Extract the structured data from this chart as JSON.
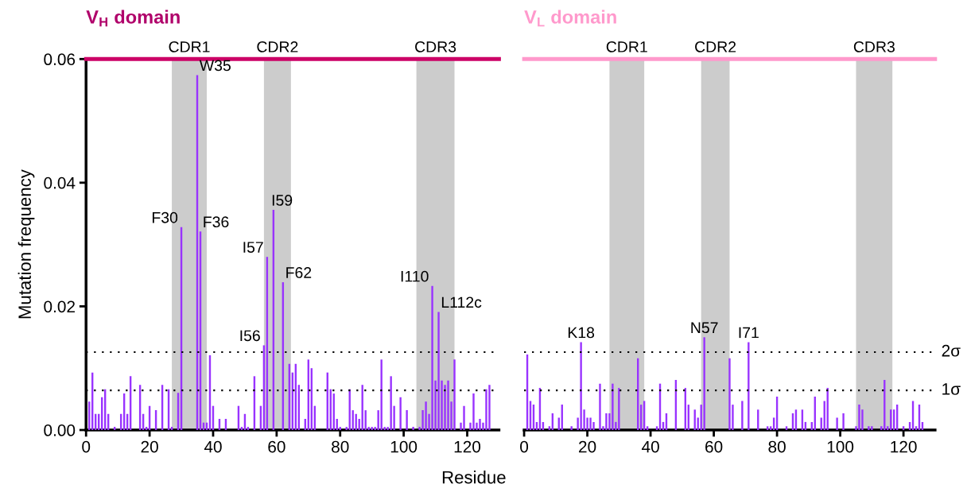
{
  "chart_data": [
    {
      "type": "bar",
      "title": "V$_{H}$ domain",
      "xlabel": "Residue",
      "ylabel": "Mutation frequency",
      "x": [
        1,
        2,
        3,
        4,
        5,
        6,
        7,
        9,
        11,
        12,
        13,
        14,
        17,
        18,
        19,
        20,
        22,
        24,
        26,
        27,
        29,
        30,
        35,
        36,
        37,
        38,
        39,
        40,
        42,
        44,
        48,
        49,
        50,
        51,
        53,
        55,
        56,
        57,
        59,
        62,
        64,
        65,
        66,
        67,
        69,
        70,
        71,
        72,
        76,
        77,
        78,
        79,
        80,
        82,
        83,
        84,
        85,
        86,
        87,
        88,
        89,
        90,
        91,
        92,
        93,
        94,
        95,
        96,
        97,
        99,
        101,
        103,
        105,
        106,
        107,
        108,
        109,
        110,
        111,
        112,
        113,
        114,
        115,
        116,
        118,
        119,
        121,
        122,
        123,
        124,
        125,
        126,
        127
      ],
      "values": [
        0.0046,
        0.0093,
        0.0026,
        0.0026,
        0.0053,
        0.0066,
        0.0026,
        0.0005,
        0.0026,
        0.0059,
        0.0026,
        0.0087,
        0.0073,
        0.0026,
        0.0005,
        0.0039,
        0.0032,
        0.0073,
        0.0066,
        0.0005,
        0.006,
        0.0328,
        0.0574,
        0.0321,
        0.0012,
        0.0012,
        0.0121,
        0.0039,
        0.0018,
        0.0018,
        0.0039,
        0.0005,
        0.0026,
        0.0005,
        0.0087,
        0.0039,
        0.0137,
        0.028,
        0.0356,
        0.0239,
        0.0107,
        0.0093,
        0.0107,
        0.0073,
        0.0018,
        0.0114,
        0.01,
        0.0039,
        0.0093,
        0.0066,
        0.0059,
        0.0018,
        0.0005,
        0.0005,
        0.0066,
        0.0032,
        0.0026,
        0.0018,
        0.0073,
        0.0032,
        0.0005,
        0.0005,
        0.0005,
        0.0032,
        0.0114,
        0.0005,
        0.0005,
        0.0087,
        0.0039,
        0.0053,
        0.0032,
        0.0005,
        0.0005,
        0.0032,
        0.0046,
        0.0026,
        0.0233,
        0.008,
        0.0191,
        0.008,
        0.0073,
        0.008,
        0.0046,
        0.0114,
        0.0012,
        0.0039,
        0.0012,
        0.0059,
        0.0012,
        0.0018,
        0.0012,
        0.0066,
        0.0073
      ],
      "color": "#9933ff",
      "xlim": [
        0,
        130
      ],
      "xticks": [
        0,
        20,
        40,
        60,
        80,
        100,
        120
      ],
      "ylim": [
        0,
        0.06
      ],
      "yticks": [
        {
          "value": 0,
          "label": "0.00"
        },
        {
          "value": 0.02,
          "label": "0.02"
        },
        {
          "value": 0.04,
          "label": "0.04"
        },
        {
          "value": 0.06,
          "label": "0.06"
        }
      ],
      "bands": [
        {
          "axis": "x",
          "from": 27,
          "to": 38,
          "label": "CDR1",
          "color": "#cccccc"
        },
        {
          "axis": "x",
          "from": 56,
          "to": 64.5,
          "label": "CDR2",
          "color": "#cccccc"
        },
        {
          "axis": "x",
          "from": 104,
          "to": 116,
          "label": "CDR3",
          "color": "#cccccc"
        }
      ],
      "ref_lines": [
        {
          "axis": "y",
          "value": 0.0126,
          "color": "#000000",
          "line_style": "dotted"
        },
        {
          "axis": "y",
          "value": 0.0064,
          "color": "#000000",
          "line_style": "dotted"
        },
        {
          "axis": "y",
          "value": 0.06,
          "color": "#cc0066",
          "line_style": "solid"
        }
      ],
      "annotations": [
        {
          "text": "F30",
          "x": 30,
          "y": 0.0328
        },
        {
          "text": "W35",
          "x": 35,
          "y": 0.0574
        },
        {
          "text": "F36",
          "x": 36,
          "y": 0.0321
        },
        {
          "text": "I57",
          "x": 57,
          "y": 0.028
        },
        {
          "text": "I59",
          "x": 59,
          "y": 0.0356
        },
        {
          "text": "F62",
          "x": 62,
          "y": 0.0239
        },
        {
          "text": "I56",
          "x": 56,
          "y": 0.0137
        },
        {
          "text": "I110",
          "x": 109,
          "y": 0.0233
        },
        {
          "text": "L112c",
          "x": 111,
          "y": 0.0191
        }
      ],
      "grid": false,
      "legend": false
    },
    {
      "type": "bar",
      "title": "V$_{L}$ domain",
      "x": [
        1,
        2,
        3,
        4,
        5,
        6,
        8,
        9,
        11,
        12,
        15,
        17,
        18,
        19,
        20,
        21,
        22,
        24,
        25,
        26,
        27,
        28,
        29,
        30,
        36,
        37,
        38,
        39,
        42,
        43,
        44,
        45,
        48,
        51,
        52,
        54,
        55,
        56,
        57,
        65,
        66,
        69,
        71,
        74,
        77,
        78,
        79,
        80,
        83,
        85,
        86,
        88,
        89,
        91,
        92,
        94,
        95,
        96,
        99,
        101,
        105,
        106,
        107,
        109,
        110,
        113,
        114,
        115,
        116,
        117,
        118,
        120,
        122,
        123,
        124,
        125,
        126
      ],
      "values": [
        0.0122,
        0.0047,
        0.0041,
        0.0013,
        0.0068,
        0.0013,
        0.0006,
        0.0027,
        0.002,
        0.0041,
        0.0006,
        0.002,
        0.0142,
        0.0033,
        0.002,
        0.002,
        0.0013,
        0.0075,
        0.0006,
        0.0027,
        0.0027,
        0.0075,
        0.0013,
        0.0068,
        0.0116,
        0.0041,
        0.0047,
        0.0006,
        0.0006,
        0.0075,
        0.0013,
        0.0027,
        0.0081,
        0.0068,
        0.0041,
        0.0033,
        0.002,
        0.0041,
        0.015,
        0.0116,
        0.0041,
        0.0047,
        0.0142,
        0.0033,
        0.0006,
        0.0006,
        0.002,
        0.0054,
        0.0006,
        0.0027,
        0.0033,
        0.0033,
        0.0013,
        0.0013,
        0.0054,
        0.002,
        0.0047,
        0.0068,
        0.002,
        0.0027,
        0.0006,
        0.0041,
        0.0033,
        0.0006,
        0.0006,
        0.0006,
        0.0081,
        0.0006,
        0.0033,
        0.0033,
        0.0041,
        0.0006,
        0.0013,
        0.0047,
        0.0006,
        0.0041,
        0.0013
      ],
      "color": "#9933ff",
      "xlim": [
        0,
        130
      ],
      "xticks": [
        0,
        20,
        40,
        60,
        80,
        100,
        120
      ],
      "ylim": [
        0,
        0.06
      ],
      "tick_labels": "x",
      "bands": [
        {
          "axis": "x",
          "from": 27,
          "to": 38,
          "label": "CDR1",
          "color": "#cccccc"
        },
        {
          "axis": "x",
          "from": 56,
          "to": 65,
          "label": "CDR2",
          "color": "#cccccc"
        },
        {
          "axis": "x",
          "from": 105,
          "to": 116.5,
          "label": "CDR3",
          "color": "#cccccc"
        }
      ],
      "ref_lines": [
        {
          "axis": "y",
          "value": 0.0126,
          "label": "2σ",
          "color": "#000000",
          "line_style": "dotted"
        },
        {
          "axis": "y",
          "value": 0.0064,
          "label": "1σ",
          "color": "#000000",
          "line_style": "dotted"
        },
        {
          "axis": "y",
          "value": 0.06,
          "color": "#ff99cc",
          "line_style": "solid"
        }
      ],
      "annotations": [
        {
          "text": "K18",
          "x": 18,
          "y": 0.0142
        },
        {
          "text": "N57",
          "x": 57,
          "y": 0.015
        },
        {
          "text": "I71",
          "x": 71,
          "y": 0.0142
        }
      ],
      "grid": false,
      "legend": false
    }
  ]
}
